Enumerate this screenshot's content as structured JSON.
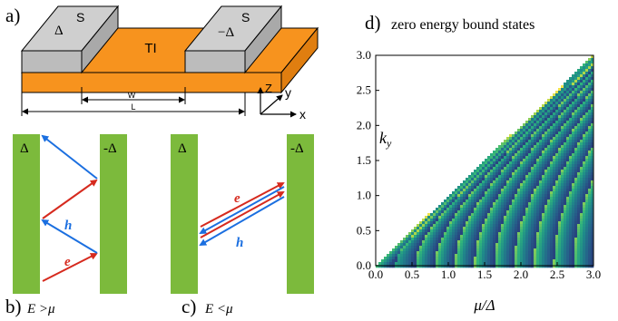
{
  "panels": {
    "a": {
      "label": "a)",
      "sc_left": {
        "material": "S",
        "gap": "Δ"
      },
      "sc_right": {
        "material": "S",
        "gap": "−Δ"
      },
      "ti": "TI",
      "dims": {
        "w": "W",
        "l": "L"
      },
      "axes": {
        "z": "Z",
        "y": "y",
        "x": "x"
      }
    },
    "b": {
      "label": "b)",
      "condition": "E >μ",
      "left_gap": "Δ",
      "right_gap": "-Δ",
      "electron": "e",
      "hole": "h"
    },
    "c": {
      "label": "c)",
      "condition": "E <μ",
      "left_gap": "Δ",
      "right_gap": "-Δ",
      "electron": "e",
      "hole": "h"
    },
    "d": {
      "label": "d)",
      "title": "zero energy bound states"
    }
  },
  "colors": {
    "superconductor": "#7cba3c",
    "ti_orange": "#f7931e",
    "sc_grey": "#c8c8c8",
    "electron_red": "#d62a1e",
    "hole_blue": "#1b6fe0"
  },
  "chart_data": {
    "type": "heatmap",
    "title": "zero energy bound states",
    "xlabel": "μ/Δ",
    "ylabel": "k_y",
    "xlim": [
      0,
      3
    ],
    "ylim": [
      0,
      3
    ],
    "xticks": [
      "0.0",
      "0.5",
      "1.0",
      "1.5",
      "2.0",
      "2.5",
      "3.0"
    ],
    "yticks": [
      "0.0",
      "0.5",
      "1.0",
      "1.5",
      "2.0",
      "2.5",
      "3.0"
    ],
    "region": "k_y < μ/Δ",
    "band_count": 11,
    "colormap": [
      "#2b1a6b",
      "#265e8a",
      "#1f8a8a",
      "#2fb47c",
      "#a8d64a",
      "#f2e34a"
    ]
  }
}
